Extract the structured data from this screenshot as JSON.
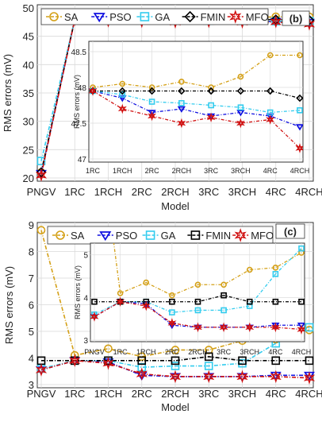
{
  "chart_data": [
    {
      "panel_label": "(b)",
      "type": "line",
      "xlabel": "Model",
      "ylabel": "RMS errors (mV)",
      "categories": [
        "PNGV",
        "1RC",
        "1RCH",
        "2RC",
        "2RCH",
        "3RC",
        "3RCH",
        "4RC",
        "4RCH"
      ],
      "ylim": [
        20,
        50
      ],
      "yticks": [
        20,
        25,
        30,
        35,
        40,
        45,
        50
      ],
      "grid": true,
      "legend_position": "top",
      "series": [
        {
          "name": "SA",
          "color": "#D4A017",
          "marker": "circle",
          "values": [
            21.0,
            48.0,
            48.05,
            48.0,
            48.08,
            48.0,
            48.15,
            48.45,
            48.45
          ]
        },
        {
          "name": "PSO",
          "color": "#1010E0",
          "marker": "triangle-down",
          "values": [
            20.8,
            47.95,
            47.85,
            47.65,
            47.7,
            47.6,
            47.65,
            47.6,
            47.45
          ]
        },
        {
          "name": "GA",
          "color": "#33CCEE",
          "marker": "square",
          "values": [
            23.0,
            47.95,
            47.9,
            47.8,
            47.78,
            47.75,
            47.72,
            47.65,
            47.68
          ]
        },
        {
          "name": "FMIN",
          "color": "#000000",
          "marker": "diamond",
          "values": [
            21.0,
            47.95,
            47.95,
            47.95,
            47.95,
            47.95,
            47.95,
            47.95,
            47.85
          ]
        },
        {
          "name": "MFO",
          "color": "#D01010",
          "marker": "star",
          "values": [
            20.5,
            47.95,
            47.7,
            47.6,
            47.5,
            47.58,
            47.5,
            47.55,
            47.15
          ]
        }
      ],
      "inset": {
        "ylabel": "RMS errors (mV)",
        "categories": [
          "1RC",
          "1RCH",
          "2RC",
          "2RCH",
          "3RC",
          "3RCH",
          "4RC",
          "4RCH"
        ],
        "ylim": [
          47,
          48.6
        ],
        "yticks": [
          47,
          47.5,
          48,
          48.5
        ],
        "ytick_labels": [
          "47",
          "47.5",
          "48",
          "48.5"
        ]
      }
    },
    {
      "panel_label": "(c)",
      "type": "line",
      "xlabel": "Model",
      "ylabel": "RMS errors (mV)",
      "categories": [
        "PNGV",
        "1RC",
        "1RCH",
        "2RC",
        "2RCH",
        "3RC",
        "3RCH",
        "4RC",
        "4RCH"
      ],
      "ylim": [
        3,
        9
      ],
      "yticks": [
        3,
        4,
        5,
        6,
        7,
        8,
        9
      ],
      "grid": true,
      "legend_position": "top",
      "series": [
        {
          "name": "SA",
          "color": "#D4A017",
          "marker": "circle",
          "values": [
            8.8,
            4.1,
            4.35,
            4.05,
            4.3,
            4.3,
            4.65,
            4.7,
            5.05
          ]
        },
        {
          "name": "PSO",
          "color": "#1010E0",
          "marker": "triangle-down",
          "values": [
            3.55,
            3.9,
            3.85,
            3.35,
            3.3,
            3.3,
            3.3,
            3.35,
            3.35
          ]
        },
        {
          "name": "GA",
          "color": "#33CCEE",
          "marker": "square",
          "values": [
            3.6,
            3.9,
            3.9,
            3.65,
            3.7,
            3.7,
            3.8,
            4.55,
            5.15
          ]
        },
        {
          "name": "FMIN",
          "color": "#000000",
          "marker": "square",
          "values": [
            3.9,
            3.9,
            3.9,
            3.9,
            3.9,
            4.05,
            3.9,
            3.9,
            3.9
          ]
        },
        {
          "name": "MFO",
          "color": "#D01010",
          "marker": "star",
          "values": [
            3.55,
            3.9,
            3.8,
            3.4,
            3.3,
            3.3,
            3.3,
            3.3,
            3.25
          ]
        }
      ],
      "inset": {
        "ylabel": "RMS errors (mV)",
        "categories": [
          "PNGV",
          "1RC",
          "1RCH",
          "2RC",
          "2RCH",
          "3RC",
          "3RCH",
          "4RC",
          "4RCH"
        ],
        "ylim": [
          3,
          5.2
        ],
        "yticks": [
          3,
          4,
          5
        ],
        "ytick_labels": [
          "3",
          "4",
          "5"
        ]
      }
    }
  ]
}
